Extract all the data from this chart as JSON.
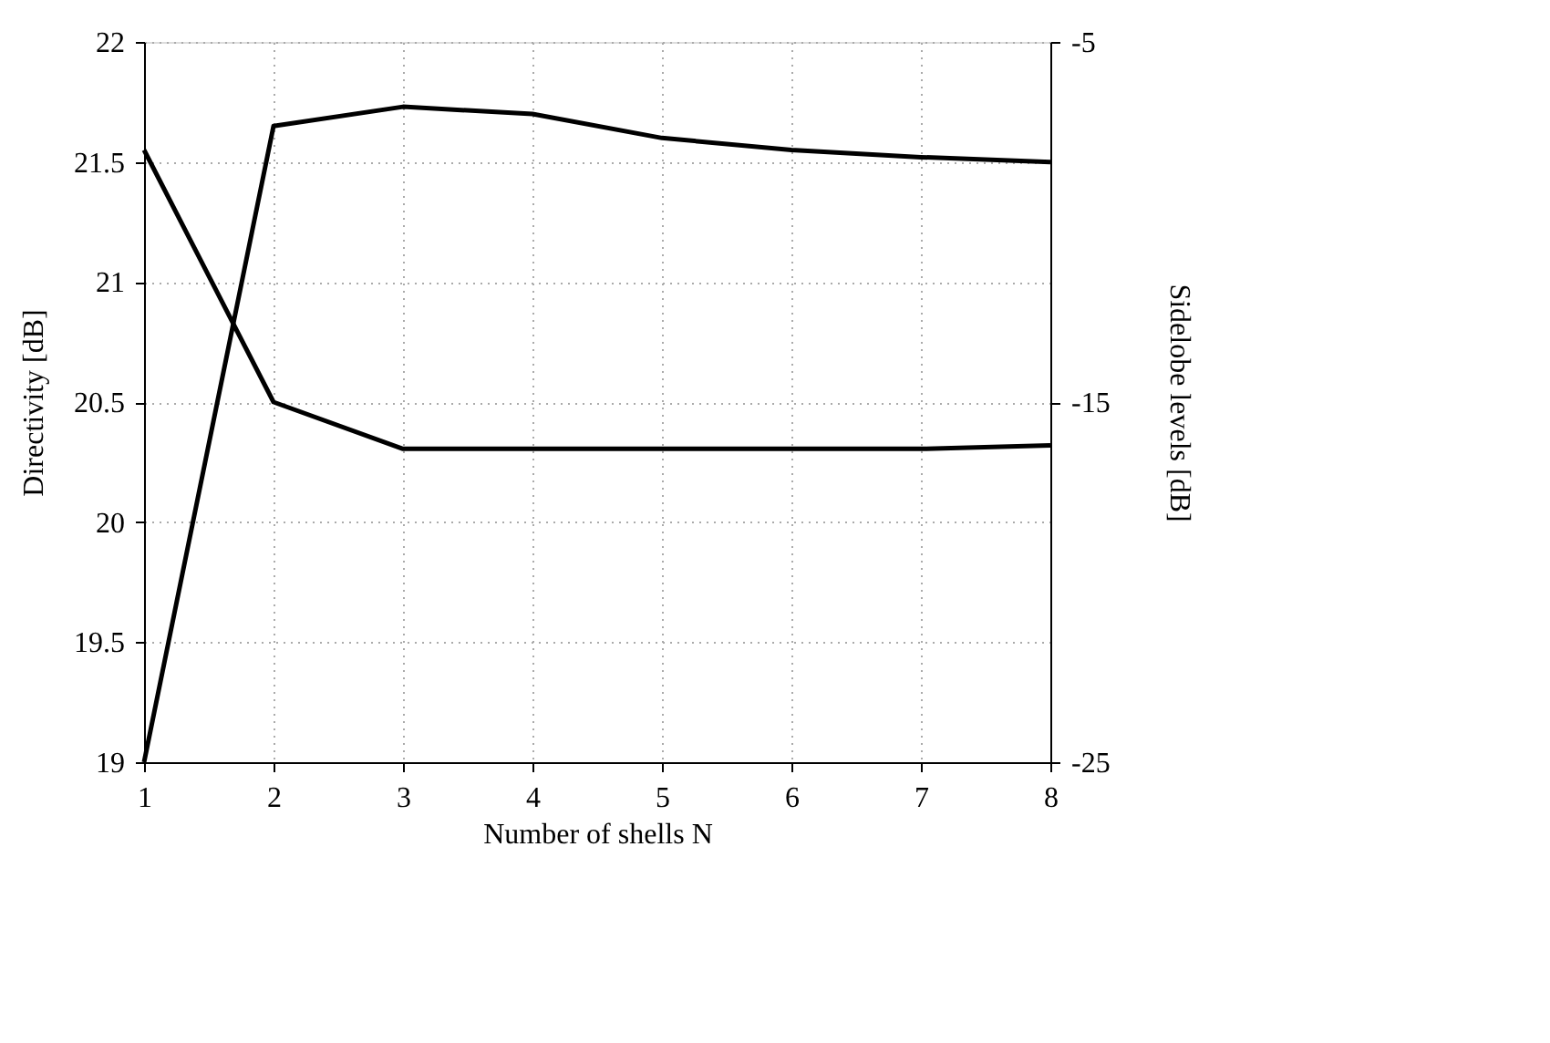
{
  "chart_data": {
    "type": "line",
    "xlabel": "Number of shells N",
    "ylabel": "Directivity [dB]",
    "y2label": "Sidelobe levels [dB]",
    "x": [
      1,
      2,
      3,
      4,
      5,
      6,
      7,
      8
    ],
    "series": [
      {
        "color": "#000000",
        "values": [
          19.0,
          21.65,
          21.73,
          21.7,
          21.6,
          21.55,
          21.52,
          21.5
        ]
      },
      {
        "color": "#000000",
        "axis": "y2",
        "values": [
          -8,
          -15,
          -16.3,
          -16.3,
          -16.3,
          -16.3,
          -16.3,
          -16.2
        ]
      }
    ],
    "xlim": [
      1,
      8
    ],
    "xticks": [
      1,
      2,
      3,
      4,
      5,
      6,
      7,
      8
    ],
    "ylim": [
      19,
      22
    ],
    "yticks": [
      19,
      19.5,
      20,
      20.5,
      21,
      21.5,
      22
    ],
    "y2lim": [
      -25,
      -5
    ],
    "y2ticks": [
      -25,
      -15,
      -5
    ],
    "grid": true,
    "marker": "none",
    "line_style": "solid"
  }
}
